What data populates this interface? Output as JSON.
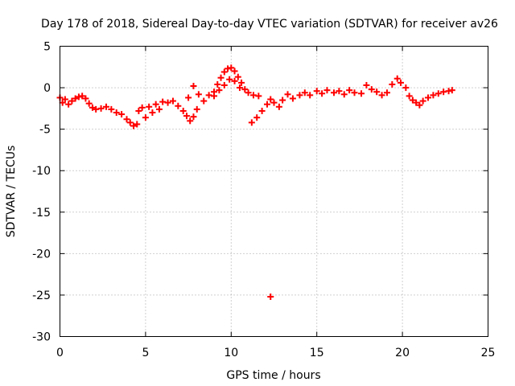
{
  "chart_data": {
    "type": "scatter",
    "title": "Day 178 of 2018, Sidereal Day-to-day VTEC variation (SDTVAR) for receiver av26",
    "xlabel": "GPS time / hours",
    "ylabel": "SDTVAR / TECUs",
    "xlim": [
      0,
      25
    ],
    "ylim": [
      -30,
      5
    ],
    "xticks": [
      "0",
      "5",
      "10",
      "15",
      "20",
      "25"
    ],
    "yticks": [
      "5",
      "0",
      "-5",
      "-10",
      "-15",
      "-20",
      "-25",
      "-30"
    ],
    "grid": true,
    "marker": "+",
    "color": "#ff0000",
    "series": [
      {
        "name": "SDTVAR",
        "points": [
          [
            0.0,
            -1.2
          ],
          [
            0.15,
            -1.8
          ],
          [
            0.3,
            -1.4
          ],
          [
            0.5,
            -2.0
          ],
          [
            0.7,
            -1.6
          ],
          [
            0.9,
            -1.3
          ],
          [
            1.1,
            -1.1
          ],
          [
            1.3,
            -1.0
          ],
          [
            1.5,
            -1.3
          ],
          [
            1.7,
            -1.9
          ],
          [
            1.9,
            -2.4
          ],
          [
            2.1,
            -2.6
          ],
          [
            2.4,
            -2.5
          ],
          [
            2.7,
            -2.3
          ],
          [
            3.0,
            -2.6
          ],
          [
            3.3,
            -3.0
          ],
          [
            3.6,
            -3.2
          ],
          [
            3.9,
            -3.8
          ],
          [
            4.1,
            -4.2
          ],
          [
            4.3,
            -4.6
          ],
          [
            4.5,
            -4.4
          ],
          [
            4.6,
            -2.8
          ],
          [
            4.8,
            -2.4
          ],
          [
            5.0,
            -3.6
          ],
          [
            5.2,
            -2.3
          ],
          [
            5.4,
            -3.0
          ],
          [
            5.6,
            -2.0
          ],
          [
            5.8,
            -2.6
          ],
          [
            6.0,
            -1.7
          ],
          [
            6.3,
            -1.8
          ],
          [
            6.6,
            -1.6
          ],
          [
            6.9,
            -2.2
          ],
          [
            7.2,
            -2.8
          ],
          [
            7.4,
            -3.4
          ],
          [
            7.6,
            -4.0
          ],
          [
            7.8,
            -3.5
          ],
          [
            8.0,
            -2.6
          ],
          [
            7.5,
            -1.2
          ],
          [
            7.8,
            0.2
          ],
          [
            8.1,
            -0.8
          ],
          [
            8.4,
            -1.6
          ],
          [
            8.7,
            -0.9
          ],
          [
            9.0,
            -0.5
          ],
          [
            9.2,
            0.4
          ],
          [
            9.4,
            1.2
          ],
          [
            9.6,
            1.9
          ],
          [
            9.8,
            2.3
          ],
          [
            10.0,
            2.4
          ],
          [
            10.2,
            2.0
          ],
          [
            10.4,
            1.3
          ],
          [
            10.6,
            0.6
          ],
          [
            10.8,
            -0.2
          ],
          [
            9.0,
            -1.0
          ],
          [
            9.3,
            -0.3
          ],
          [
            9.6,
            0.3
          ],
          [
            9.9,
            1.0
          ],
          [
            10.2,
            0.8
          ],
          [
            10.5,
            0.0
          ],
          [
            11.0,
            -0.6
          ],
          [
            11.3,
            -0.9
          ],
          [
            11.6,
            -1.0
          ],
          [
            11.2,
            -4.2
          ],
          [
            11.5,
            -3.6
          ],
          [
            11.8,
            -2.8
          ],
          [
            12.1,
            -2.0
          ],
          [
            12.3,
            -1.4
          ],
          [
            12.5,
            -1.8
          ],
          [
            12.8,
            -2.3
          ],
          [
            13.0,
            -1.5
          ],
          [
            13.3,
            -0.8
          ],
          [
            13.6,
            -1.3
          ],
          [
            14.0,
            -0.9
          ],
          [
            14.3,
            -0.6
          ],
          [
            14.6,
            -0.9
          ],
          [
            15.0,
            -0.4
          ],
          [
            15.3,
            -0.7
          ],
          [
            15.6,
            -0.3
          ],
          [
            16.0,
            -0.6
          ],
          [
            16.3,
            -0.4
          ],
          [
            16.6,
            -0.8
          ],
          [
            16.9,
            -0.3
          ],
          [
            17.2,
            -0.6
          ],
          [
            17.6,
            -0.7
          ],
          [
            17.9,
            0.3
          ],
          [
            18.2,
            -0.2
          ],
          [
            18.5,
            -0.5
          ],
          [
            18.8,
            -0.9
          ],
          [
            19.1,
            -0.6
          ],
          [
            19.4,
            0.4
          ],
          [
            19.7,
            1.1
          ],
          [
            19.9,
            0.6
          ],
          [
            20.2,
            0.0
          ],
          [
            20.4,
            -1.0
          ],
          [
            20.6,
            -1.5
          ],
          [
            20.8,
            -1.8
          ],
          [
            21.0,
            -2.1
          ],
          [
            21.2,
            -1.6
          ],
          [
            21.5,
            -1.2
          ],
          [
            21.8,
            -0.9
          ],
          [
            22.1,
            -0.7
          ],
          [
            22.4,
            -0.5
          ],
          [
            22.7,
            -0.4
          ],
          [
            22.9,
            -0.3
          ],
          [
            12.3,
            -25.2
          ]
        ]
      }
    ]
  }
}
